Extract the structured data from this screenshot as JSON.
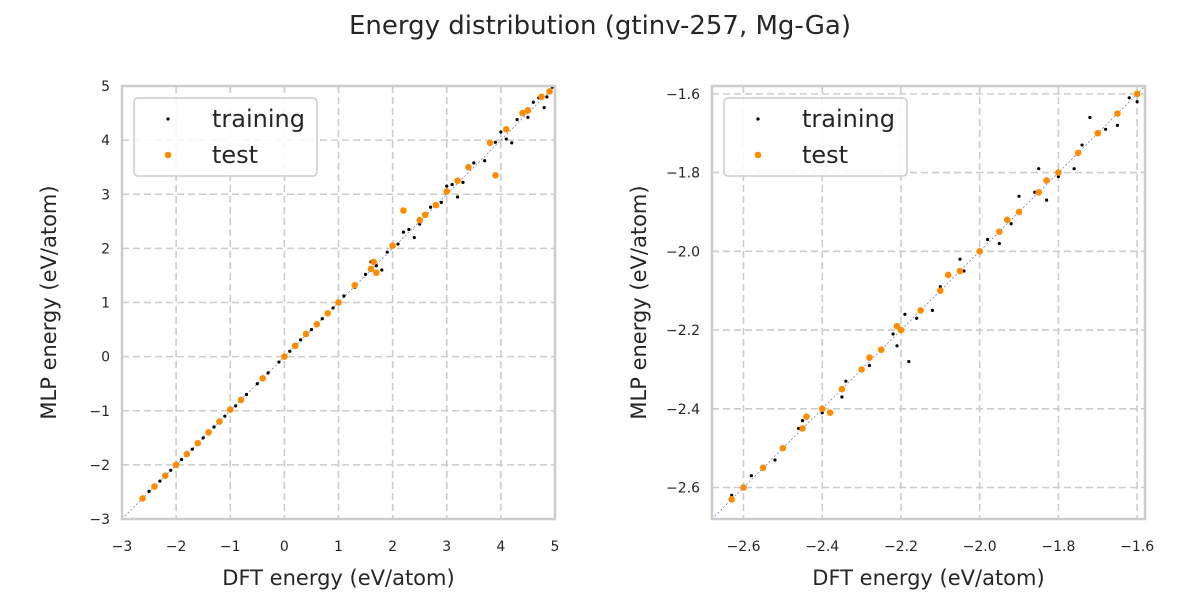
{
  "figure": {
    "title": "Energy distribution (gtinv-257, Mg-Ga)"
  },
  "colors": {
    "training": "#000000",
    "test": "#ff8c00",
    "grid": "#cccccc",
    "frame": "#cccccc",
    "diagonal": "#7f7fbf"
  },
  "chart_data": [
    {
      "type": "scatter",
      "xlabel": "DFT energy (eV/atom)",
      "ylabel": "MLP energy (eV/atom)",
      "xlim": [
        -3,
        5
      ],
      "ylim": [
        -3,
        5
      ],
      "xticks": [
        -3,
        -2,
        -1,
        0,
        1,
        2,
        3,
        4,
        5
      ],
      "yticks": [
        -3,
        -2,
        -1,
        0,
        1,
        2,
        3,
        4,
        5
      ],
      "xtick_labels": [
        "−3",
        "−2",
        "−1",
        "0",
        "1",
        "2",
        "3",
        "4",
        "5"
      ],
      "ytick_labels": [
        "−3",
        "−2",
        "−1",
        "0",
        "1",
        "2",
        "3",
        "4",
        "5"
      ],
      "grid": true,
      "legend": "upper-left",
      "series": [
        {
          "name": "training",
          "marker": "dot",
          "points": [
            [
              -2.62,
              -2.61
            ],
            [
              -2.5,
              -2.49
            ],
            [
              -2.3,
              -2.3
            ],
            [
              -2.1,
              -2.1
            ],
            [
              -1.9,
              -1.9
            ],
            [
              -1.7,
              -1.71
            ],
            [
              -1.5,
              -1.5
            ],
            [
              -1.3,
              -1.3
            ],
            [
              -1.1,
              -1.1
            ],
            [
              -0.9,
              -0.91
            ],
            [
              -0.7,
              -0.7
            ],
            [
              -0.5,
              -0.5
            ],
            [
              -0.3,
              -0.3
            ],
            [
              -0.1,
              -0.1
            ],
            [
              0.1,
              0.1
            ],
            [
              0.3,
              0.31
            ],
            [
              0.5,
              0.5
            ],
            [
              0.7,
              0.7
            ],
            [
              0.9,
              0.9
            ],
            [
              1.1,
              1.12
            ],
            [
              1.3,
              1.28
            ],
            [
              1.5,
              1.52
            ],
            [
              1.7,
              1.68
            ],
            [
              1.9,
              1.93
            ],
            [
              2.1,
              2.08
            ],
            [
              2.3,
              2.35
            ],
            [
              2.5,
              2.45
            ],
            [
              2.7,
              2.76
            ],
            [
              2.9,
              2.85
            ],
            [
              3.1,
              3.18
            ],
            [
              3.3,
              3.22
            ],
            [
              3.5,
              3.58
            ],
            [
              3.7,
              3.62
            ],
            [
              3.9,
              3.96
            ],
            [
              4.1,
              4.02
            ],
            [
              4.3,
              4.38
            ],
            [
              4.5,
              4.42
            ],
            [
              4.7,
              4.78
            ],
            [
              4.85,
              4.8
            ],
            [
              4.95,
              4.98
            ],
            [
              2.2,
              2.3
            ],
            [
              2.4,
              2.2
            ],
            [
              3.0,
              3.15
            ],
            [
              3.2,
              2.95
            ],
            [
              4.0,
              4.15
            ],
            [
              4.2,
              3.95
            ],
            [
              4.6,
              4.7
            ],
            [
              4.8,
              4.6
            ],
            [
              1.6,
              1.75
            ],
            [
              1.8,
              1.6
            ]
          ]
        },
        {
          "name": "test",
          "marker": "circle",
          "points": [
            [
              -2.62,
              -2.62
            ],
            [
              -2.4,
              -2.4
            ],
            [
              -2.2,
              -2.2
            ],
            [
              -2.0,
              -2.0
            ],
            [
              -1.8,
              -1.8
            ],
            [
              -1.6,
              -1.6
            ],
            [
              -1.4,
              -1.4
            ],
            [
              -1.2,
              -1.2
            ],
            [
              -1.0,
              -0.98
            ],
            [
              -0.8,
              -0.8
            ],
            [
              -0.4,
              -0.4
            ],
            [
              0.0,
              0.0
            ],
            [
              0.2,
              0.2
            ],
            [
              0.4,
              0.42
            ],
            [
              0.6,
              0.6
            ],
            [
              0.8,
              0.8
            ],
            [
              1.0,
              1.0
            ],
            [
              1.3,
              1.32
            ],
            [
              1.6,
              1.62
            ],
            [
              1.65,
              1.75
            ],
            [
              1.7,
              1.55
            ],
            [
              2.2,
              2.7
            ],
            [
              2.5,
              2.52
            ],
            [
              2.8,
              2.8
            ],
            [
              3.0,
              3.05
            ],
            [
              3.2,
              3.25
            ],
            [
              3.4,
              3.5
            ],
            [
              3.9,
              3.35
            ],
            [
              4.1,
              4.2
            ],
            [
              4.4,
              4.5
            ],
            [
              4.5,
              4.55
            ],
            [
              4.75,
              4.8
            ],
            [
              4.9,
              4.9
            ],
            [
              3.8,
              3.95
            ],
            [
              2.6,
              2.62
            ],
            [
              2.0,
              2.05
            ]
          ]
        }
      ]
    },
    {
      "type": "scatter",
      "xlabel": "DFT energy (eV/atom)",
      "ylabel": "MLP energy (eV/atom)",
      "xlim": [
        -2.68,
        -1.58
      ],
      "ylim": [
        -2.68,
        -1.58
      ],
      "xticks": [
        -2.6,
        -2.4,
        -2.2,
        -2.0,
        -1.8,
        -1.6
      ],
      "yticks": [
        -2.6,
        -2.4,
        -2.2,
        -2.0,
        -1.8,
        -1.6
      ],
      "xtick_labels": [
        "−2.6",
        "−2.4",
        "−2.2",
        "−2.0",
        "−1.8",
        "−1.6"
      ],
      "ytick_labels": [
        "−2.6",
        "−2.4",
        "−2.2",
        "−2.0",
        "−1.8",
        "−1.6"
      ],
      "grid": true,
      "legend": "upper-left",
      "series": [
        {
          "name": "training",
          "marker": "dot",
          "points": [
            [
              -2.63,
              -2.62
            ],
            [
              -2.58,
              -2.57
            ],
            [
              -2.52,
              -2.53
            ],
            [
              -2.46,
              -2.45
            ],
            [
              -2.4,
              -2.41
            ],
            [
              -2.34,
              -2.33
            ],
            [
              -2.28,
              -2.29
            ],
            [
              -2.22,
              -2.21
            ],
            [
              -2.16,
              -2.17
            ],
            [
              -2.1,
              -2.09
            ],
            [
              -2.04,
              -2.05
            ],
            [
              -1.98,
              -1.97
            ],
            [
              -1.92,
              -1.93
            ],
            [
              -1.86,
              -1.85
            ],
            [
              -1.8,
              -1.81
            ],
            [
              -1.74,
              -1.73
            ],
            [
              -1.68,
              -1.69
            ],
            [
              -1.62,
              -1.61
            ],
            [
              -1.6,
              -1.62
            ],
            [
              -2.21,
              -2.24
            ],
            [
              -2.19,
              -2.16
            ],
            [
              -2.18,
              -2.28
            ],
            [
              -1.85,
              -1.79
            ],
            [
              -1.83,
              -1.87
            ],
            [
              -1.76,
              -1.79
            ],
            [
              -1.72,
              -1.66
            ],
            [
              -2.05,
              -2.02
            ],
            [
              -1.95,
              -1.98
            ],
            [
              -2.35,
              -2.37
            ],
            [
              -2.45,
              -2.43
            ],
            [
              -1.65,
              -1.68
            ],
            [
              -1.59,
              -1.57
            ],
            [
              -1.9,
              -1.86
            ],
            [
              -2.12,
              -2.15
            ]
          ]
        },
        {
          "name": "test",
          "marker": "circle",
          "points": [
            [
              -2.63,
              -2.63
            ],
            [
              -2.6,
              -2.6
            ],
            [
              -2.55,
              -2.55
            ],
            [
              -2.5,
              -2.5
            ],
            [
              -2.45,
              -2.45
            ],
            [
              -2.4,
              -2.4
            ],
            [
              -2.35,
              -2.35
            ],
            [
              -2.3,
              -2.3
            ],
            [
              -2.25,
              -2.25
            ],
            [
              -2.2,
              -2.2
            ],
            [
              -2.15,
              -2.15
            ],
            [
              -2.1,
              -2.1
            ],
            [
              -2.05,
              -2.05
            ],
            [
              -2.0,
              -2.0
            ],
            [
              -1.95,
              -1.95
            ],
            [
              -1.9,
              -1.9
            ],
            [
              -1.85,
              -1.85
            ],
            [
              -1.8,
              -1.8
            ],
            [
              -1.75,
              -1.75
            ],
            [
              -1.7,
              -1.7
            ],
            [
              -1.65,
              -1.65
            ],
            [
              -1.6,
              -1.6
            ],
            [
              -1.93,
              -1.92
            ],
            [
              -2.21,
              -2.19
            ],
            [
              -2.38,
              -2.41
            ],
            [
              -2.44,
              -2.42
            ],
            [
              -1.83,
              -1.82
            ],
            [
              -2.08,
              -2.06
            ],
            [
              -2.28,
              -2.27
            ]
          ]
        }
      ]
    }
  ]
}
